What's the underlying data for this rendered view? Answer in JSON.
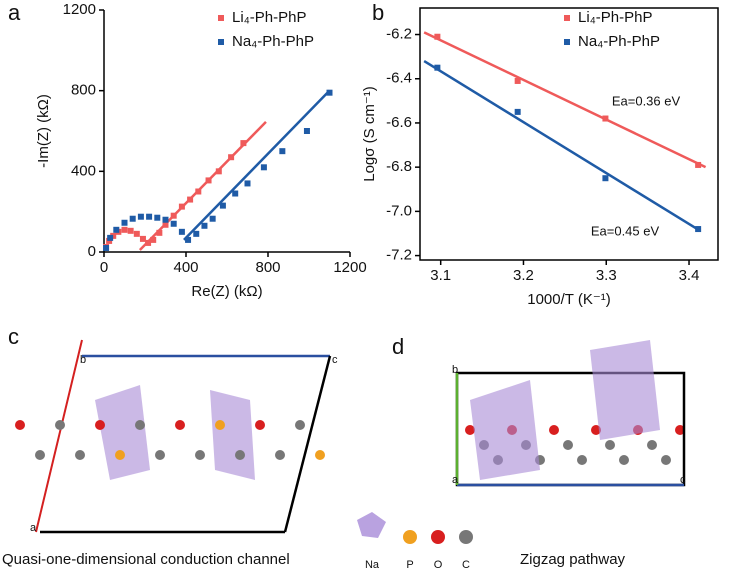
{
  "chart_data": [
    {
      "type": "scatter",
      "panel": "a",
      "xlabel": "Re(Z) (kΩ)",
      "ylabel": "-Im(Z) (kΩ)",
      "xlim": [
        0,
        1200
      ],
      "ylim": [
        0,
        1200
      ],
      "xticks": [
        0,
        400,
        800,
        1200
      ],
      "yticks": [
        0,
        400,
        800,
        1200
      ],
      "legend": "upper right",
      "box": false,
      "series": [
        {
          "name": "Li₄-Ph-PhP",
          "color": "#ef5a5a",
          "x": [
            10,
            25,
            45,
            70,
            100,
            130,
            160,
            190,
            215,
            240,
            270,
            300,
            340,
            380,
            420,
            460,
            510,
            560,
            620,
            680
          ],
          "values": [
            25,
            55,
            80,
            100,
            110,
            105,
            90,
            65,
            45,
            60,
            95,
            135,
            180,
            225,
            260,
            300,
            355,
            400,
            470,
            540
          ],
          "fit": {
            "x": [
              175,
              790
            ],
            "y": [
              10,
              645
            ]
          }
        },
        {
          "name": "Na₄-Ph-PhP",
          "color": "#1f5ba6",
          "x": [
            10,
            30,
            60,
            100,
            140,
            180,
            220,
            260,
            300,
            340,
            380,
            410,
            450,
            490,
            530,
            580,
            640,
            700,
            780,
            870,
            990,
            1100
          ],
          "values": [
            20,
            70,
            110,
            145,
            165,
            175,
            175,
            170,
            160,
            140,
            100,
            60,
            90,
            130,
            165,
            230,
            290,
            340,
            420,
            500,
            600,
            790
          ],
          "fit": {
            "x": [
              390,
              1100
            ],
            "y": [
              60,
              800
            ]
          }
        }
      ]
    },
    {
      "type": "scatter",
      "panel": "b",
      "xlabel": "1000/T (K⁻¹)",
      "ylabel": "Logσ (S cm⁻¹)",
      "xlim": [
        3.075,
        3.435
      ],
      "ylim": [
        -7.22,
        -6.08
      ],
      "xticks": [
        3.1,
        3.2,
        3.3,
        3.4
      ],
      "yticks": [
        -6.2,
        -6.4,
        -6.6,
        -6.8,
        {
          "value": -7,
          "label": "-7.0"
        },
        -7.2
      ],
      "legend": "upper right",
      "box": true,
      "annotations": [
        "Ea=0.36 eV",
        "Ea=0.45 eV"
      ],
      "series": [
        {
          "name": "Li₄-Ph-PhP",
          "color": "#ef5a5a",
          "x": [
            3.096,
            3.193,
            3.299,
            3.411
          ],
          "values": [
            -6.21,
            -6.41,
            -6.58,
            -6.79
          ],
          "fit": {
            "x": [
              3.08,
              3.42
            ],
            "y": [
              -6.19,
              -6.8
            ]
          }
        },
        {
          "name": "Na₄-Ph-PhP",
          "color": "#1f5ba6",
          "x": [
            3.096,
            3.193,
            3.299,
            3.411
          ],
          "values": [
            -6.35,
            -6.55,
            -6.85,
            -7.08
          ],
          "fit": {
            "x": [
              3.08,
              3.41
            ],
            "y": [
              -6.32,
              -7.08
            ]
          }
        }
      ]
    }
  ],
  "panels": {
    "c": {
      "label": "c",
      "axes": [
        "b",
        "c",
        "a"
      ],
      "caption": "Quasi-one-dimensional conduction channel"
    },
    "d": {
      "label": "d",
      "axes": [
        "b",
        "a",
        "c"
      ],
      "caption": "Zigzag pathway"
    },
    "legend": [
      "Na",
      "P",
      "O",
      "C"
    ]
  }
}
